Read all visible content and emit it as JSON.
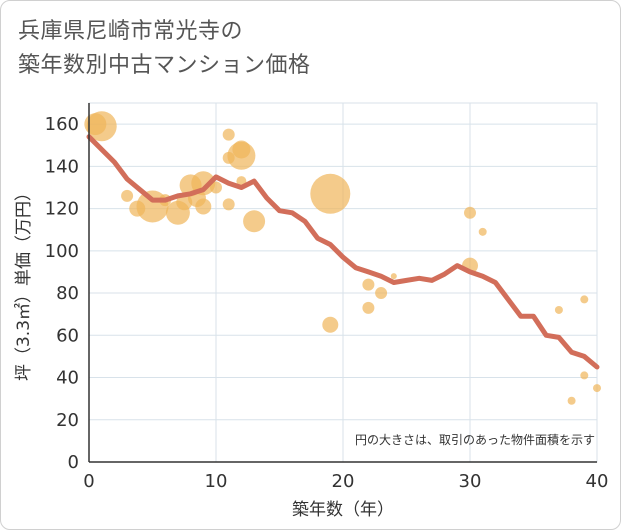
{
  "title_line1": "兵庫県尼崎市常光寺の",
  "title_line2": "築年数別中古マンション価格",
  "colors": {
    "bubble": "#f0b55a",
    "line": "#d26e5a",
    "grid": "#d8e2ea",
    "plot_bg": "#ffffff"
  },
  "chart_data": {
    "type": "scatter",
    "xlabel": "築年数（年）",
    "ylabel": "坪（3.3㎡）単価（万円）",
    "xlim": [
      0,
      40
    ],
    "ylim": [
      0,
      170
    ],
    "xticks": [
      0,
      10,
      20,
      30,
      40
    ],
    "yticks": [
      0,
      20,
      40,
      60,
      80,
      100,
      120,
      140,
      160
    ],
    "grid": true,
    "note": "円の大きさは、取引のあった物件面積を示す",
    "bubbles": [
      {
        "x": 0.5,
        "y": 160,
        "s": 11
      },
      {
        "x": 1,
        "y": 159,
        "s": 15
      },
      {
        "x": 3,
        "y": 126,
        "s": 6
      },
      {
        "x": 3.8,
        "y": 120,
        "s": 8
      },
      {
        "x": 5,
        "y": 121,
        "s": 16
      },
      {
        "x": 6,
        "y": 124,
        "s": 6
      },
      {
        "x": 7,
        "y": 118,
        "s": 12
      },
      {
        "x": 7.5,
        "y": 123,
        "s": 8
      },
      {
        "x": 8,
        "y": 131,
        "s": 11
      },
      {
        "x": 8.5,
        "y": 125,
        "s": 9
      },
      {
        "x": 9,
        "y": 132,
        "s": 12
      },
      {
        "x": 9,
        "y": 121,
        "s": 8
      },
      {
        "x": 10,
        "y": 130,
        "s": 6
      },
      {
        "x": 11,
        "y": 155,
        "s": 6
      },
      {
        "x": 11,
        "y": 144,
        "s": 6
      },
      {
        "x": 11,
        "y": 122,
        "s": 6
      },
      {
        "x": 12,
        "y": 145,
        "s": 14
      },
      {
        "x": 12,
        "y": 148,
        "s": 9
      },
      {
        "x": 12,
        "y": 133,
        "s": 5
      },
      {
        "x": 13,
        "y": 114,
        "s": 11
      },
      {
        "x": 19,
        "y": 127,
        "s": 20
      },
      {
        "x": 19,
        "y": 65,
        "s": 8
      },
      {
        "x": 22,
        "y": 84,
        "s": 6
      },
      {
        "x": 22,
        "y": 73,
        "s": 6
      },
      {
        "x": 23,
        "y": 80,
        "s": 6
      },
      {
        "x": 24,
        "y": 88,
        "s": 3
      },
      {
        "x": 30,
        "y": 118,
        "s": 6
      },
      {
        "x": 30,
        "y": 93,
        "s": 8
      },
      {
        "x": 31,
        "y": 109,
        "s": 4
      },
      {
        "x": 37,
        "y": 72,
        "s": 4
      },
      {
        "x": 38,
        "y": 29,
        "s": 4
      },
      {
        "x": 39,
        "y": 77,
        "s": 4
      },
      {
        "x": 39,
        "y": 41,
        "s": 4
      },
      {
        "x": 40,
        "y": 35,
        "s": 4
      }
    ],
    "series": [
      {
        "x": [
          0,
          1,
          2,
          3,
          4,
          5,
          6,
          7,
          8,
          9,
          10,
          11,
          12,
          13,
          14,
          15,
          16,
          17,
          18,
          19,
          20,
          21,
          22,
          23,
          24,
          25,
          26,
          27,
          28,
          29,
          30,
          31,
          32,
          33,
          34,
          35,
          36,
          37,
          38,
          39,
          40
        ],
        "y": [
          154,
          148,
          142,
          134,
          129,
          124,
          124,
          126,
          127,
          129,
          135,
          132,
          130,
          133,
          125,
          119,
          118,
          114,
          106,
          103,
          97,
          92,
          90,
          88,
          85,
          86,
          87,
          86,
          89,
          93,
          90,
          88,
          85,
          77,
          69,
          69,
          60,
          59,
          52,
          50,
          45
        ]
      }
    ]
  }
}
